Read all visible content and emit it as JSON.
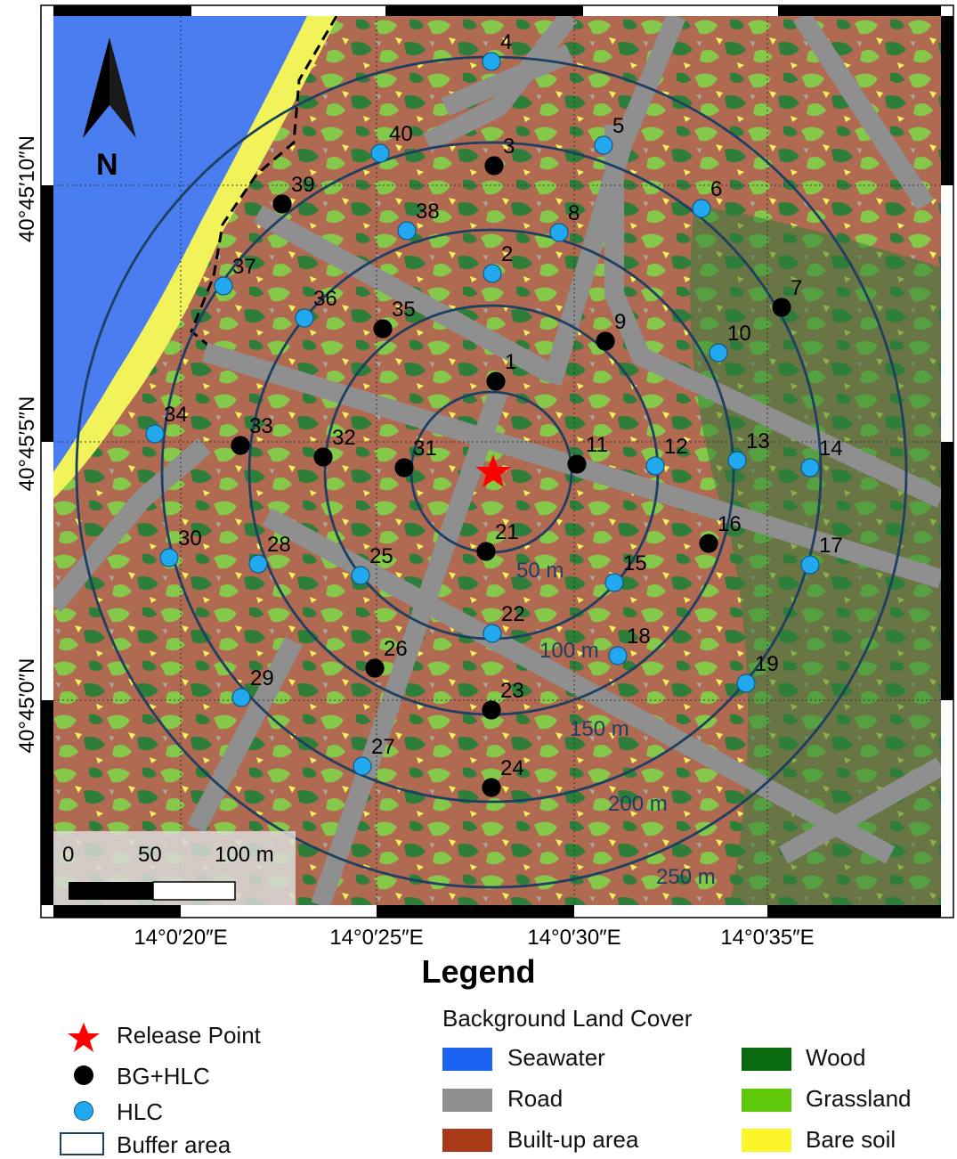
{
  "map": {
    "north_label": "N",
    "lat_labels": [
      "40°45′10″N",
      "40°45′5″N",
      "40°45′0″N"
    ],
    "lon_labels": [
      "14°0′20″E",
      "14°0′25″E",
      "14°0′30″E",
      "14°0′35″E"
    ],
    "scale": {
      "labels": [
        "0",
        "50",
        "100 m"
      ]
    },
    "ring_labels": [
      "50 m",
      "100 m",
      "150 m",
      "200 m",
      "250 m"
    ],
    "release_point_icon": "red-star-icon",
    "points": [
      {
        "id": "1",
        "type": "BG+HLC"
      },
      {
        "id": "2",
        "type": "HLC"
      },
      {
        "id": "3",
        "type": "BG+HLC"
      },
      {
        "id": "4",
        "type": "HLC"
      },
      {
        "id": "5",
        "type": "HLC"
      },
      {
        "id": "6",
        "type": "HLC"
      },
      {
        "id": "7",
        "type": "BG+HLC"
      },
      {
        "id": "8",
        "type": "HLC"
      },
      {
        "id": "9",
        "type": "BG+HLC"
      },
      {
        "id": "10",
        "type": "HLC"
      },
      {
        "id": "11",
        "type": "BG+HLC"
      },
      {
        "id": "12",
        "type": "HLC"
      },
      {
        "id": "13",
        "type": "HLC"
      },
      {
        "id": "14",
        "type": "HLC"
      },
      {
        "id": "15",
        "type": "HLC"
      },
      {
        "id": "16",
        "type": "BG+HLC"
      },
      {
        "id": "17",
        "type": "HLC"
      },
      {
        "id": "18",
        "type": "HLC"
      },
      {
        "id": "19",
        "type": "HLC"
      },
      {
        "id": "21",
        "type": "BG+HLC"
      },
      {
        "id": "22",
        "type": "HLC"
      },
      {
        "id": "23",
        "type": "BG+HLC"
      },
      {
        "id": "24",
        "type": "BG+HLC"
      },
      {
        "id": "25",
        "type": "HLC"
      },
      {
        "id": "26",
        "type": "BG+HLC"
      },
      {
        "id": "27",
        "type": "HLC"
      },
      {
        "id": "28",
        "type": "HLC"
      },
      {
        "id": "29",
        "type": "HLC"
      },
      {
        "id": "30",
        "type": "HLC"
      },
      {
        "id": "31",
        "type": "BG+HLC"
      },
      {
        "id": "32",
        "type": "BG+HLC"
      },
      {
        "id": "33",
        "type": "BG+HLC"
      },
      {
        "id": "34",
        "type": "HLC"
      },
      {
        "id": "35",
        "type": "BG+HLC"
      },
      {
        "id": "36",
        "type": "HLC"
      },
      {
        "id": "37",
        "type": "HLC"
      },
      {
        "id": "38",
        "type": "HLC"
      },
      {
        "id": "39",
        "type": "BG+HLC"
      },
      {
        "id": "40",
        "type": "HLC"
      }
    ]
  },
  "legend": {
    "title": "Legend",
    "release_point": "Release Point",
    "bg_hlc": "BG+HLC",
    "hlc": "HLC",
    "buffer": "Buffer area",
    "land_cover_title": "Background Land Cover",
    "seawater": "Seawater",
    "road": "Road",
    "builtup": "Built-up area",
    "wood": "Wood",
    "grassland": "Grassland",
    "bare_soil": "Bare soil"
  },
  "colors": {
    "seawater": "#4a7ef0",
    "road": "#8f8f8f",
    "builtup": "#b06a52",
    "wood": "#2f7d3a",
    "grassland": "#86c94a",
    "bare_soil": "#f2f25a",
    "bg_hlc": "#000000",
    "hlc": "#21a8ee",
    "ring": "#1d3f60",
    "release": "#ff0000"
  }
}
